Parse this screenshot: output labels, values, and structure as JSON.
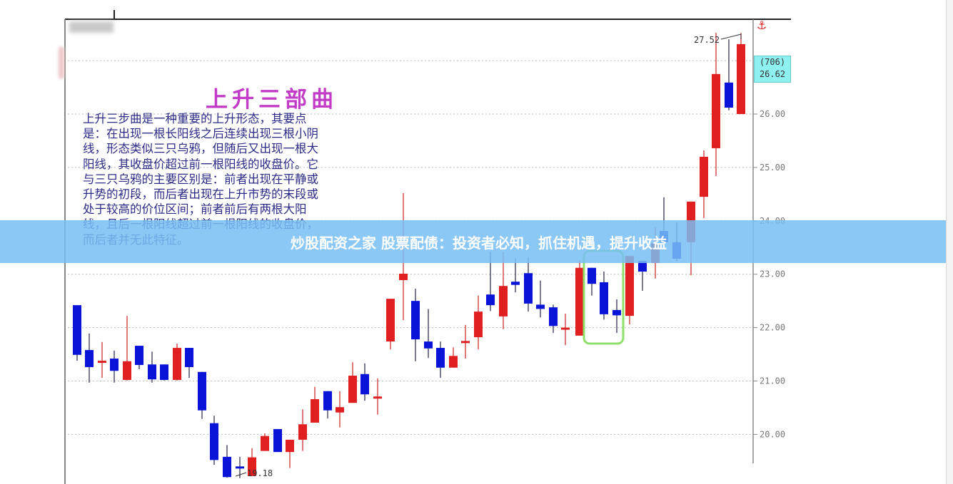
{
  "overlay": {
    "title": "上升三部曲",
    "description_lines": [
      "上升三步曲是一种重要的上升形态，其要点",
      "是：在出现一根长阳线之后连续出现三根小阴",
      "线，形态类似三只乌鸦，但随后又出现一根大",
      "阳线，其收盘价超过前一根阳线的收盘价。它",
      "与三只乌鸦的主要区别是：前者出现在平静或",
      "升势的初段，而后者出现在上升市势的末段或",
      "处于较高的价位区间；前者前后有两根大阳",
      "线，且后一根阳线超过前一根阳线的收盘价，",
      "而后者并无此特征。"
    ],
    "banner": "炒股配资之家 股票配债：投资者必知，抓住机遇，提升收益"
  },
  "price_box": {
    "count": "(706)",
    "price": "26.62"
  },
  "icons": {
    "anchor": "anchor-icon"
  },
  "colors": {
    "up": "#e02020",
    "down": "#0a14d8",
    "highlight": "#8fe06a",
    "title": "#c23cc8",
    "text": "#2b2b86",
    "banner": "#78bef5",
    "price_box": "#8ff0f0"
  },
  "chart_data": {
    "type": "candlestick",
    "ylim": [
      19,
      27.6
    ],
    "y_ticks": [
      "26.00",
      "25.00",
      "24.00",
      "23.00",
      "22.00",
      "21.00",
      "20.00"
    ],
    "grid": "horizontal-dotted",
    "annotations": {
      "high": "27.52",
      "low": "19.18"
    },
    "highlight_range": [
      42,
      44
    ],
    "candles": [
      [
        22.42,
        22.42,
        21.38,
        21.49
      ],
      [
        21.58,
        21.89,
        20.97,
        21.26
      ],
      [
        21.38,
        21.73,
        21.06,
        21.38
      ],
      [
        21.42,
        21.57,
        20.97,
        21.19
      ],
      [
        21.02,
        22.22,
        21.01,
        21.37
      ],
      [
        21.66,
        21.66,
        21.22,
        21.3
      ],
      [
        21.31,
        21.55,
        20.97,
        21.03
      ],
      [
        21.31,
        21.31,
        21.01,
        21.02
      ],
      [
        21.02,
        21.7,
        21.01,
        21.62
      ],
      [
        21.62,
        21.62,
        21.06,
        21.26
      ],
      [
        21.17,
        21.17,
        20.29,
        20.45
      ],
      [
        20.21,
        20.35,
        19.43,
        19.52
      ],
      [
        19.58,
        19.8,
        19.19,
        19.2
      ],
      [
        19.4,
        19.58,
        19.18,
        19.39
      ],
      [
        19.22,
        19.74,
        19.22,
        19.57
      ],
      [
        19.69,
        20.02,
        19.69,
        19.97
      ],
      [
        20.1,
        20.1,
        19.67,
        19.67
      ],
      [
        19.67,
        19.9,
        19.37,
        19.9
      ],
      [
        19.9,
        20.47,
        19.69,
        20.19
      ],
      [
        20.22,
        20.89,
        20.22,
        20.66
      ],
      [
        20.81,
        20.81,
        20.3,
        20.45
      ],
      [
        20.41,
        20.81,
        20.13,
        20.51
      ],
      [
        20.59,
        21.35,
        20.59,
        21.1
      ],
      [
        21.13,
        21.33,
        20.63,
        20.75
      ],
      [
        20.7,
        21.05,
        20.37,
        20.71
      ],
      [
        21.74,
        22.54,
        21.59,
        22.54
      ],
      [
        22.89,
        24.52,
        22.14,
        23.01
      ],
      [
        22.5,
        22.73,
        21.37,
        21.78
      ],
      [
        21.74,
        22.35,
        21.43,
        21.61
      ],
      [
        21.62,
        21.74,
        21.06,
        21.25
      ],
      [
        21.25,
        21.63,
        21.25,
        21.47
      ],
      [
        21.74,
        22.05,
        21.42,
        21.75
      ],
      [
        21.82,
        22.6,
        21.59,
        22.3
      ],
      [
        22.62,
        23.42,
        22.31,
        22.42
      ],
      [
        22.21,
        23.42,
        21.97,
        22.78
      ],
      [
        22.86,
        23.3,
        22.66,
        22.8
      ],
      [
        23.02,
        23.32,
        22.3,
        22.45
      ],
      [
        22.43,
        22.88,
        22.19,
        22.35
      ],
      [
        22.38,
        22.43,
        21.9,
        22.03
      ],
      [
        21.99,
        22.26,
        21.67,
        22.0
      ],
      [
        21.85,
        23.25,
        21.85,
        23.12
      ],
      [
        23.12,
        23.12,
        22.6,
        22.82
      ],
      [
        22.85,
        23.05,
        22.15,
        22.25
      ],
      [
        22.33,
        22.53,
        21.9,
        22.23
      ],
      [
        22.22,
        23.34,
        22.06,
        23.34
      ],
      [
        23.25,
        23.25,
        22.69,
        23.05
      ],
      [
        23.21,
        23.88,
        22.92,
        23.58
      ],
      [
        23.81,
        24.44,
        23.6,
        23.6
      ],
      [
        23.6,
        23.97,
        23.25,
        23.29
      ],
      [
        23.6,
        24.36,
        22.98,
        24.36
      ],
      [
        24.45,
        25.32,
        24.05,
        25.2
      ],
      [
        25.36,
        27.52,
        24.84,
        26.75
      ],
      [
        26.59,
        27.4,
        26.07,
        26.12
      ],
      [
        26.0,
        27.52,
        26.0,
        27.31
      ]
    ],
    "candle_format": [
      "open",
      "high",
      "low",
      "close"
    ]
  }
}
